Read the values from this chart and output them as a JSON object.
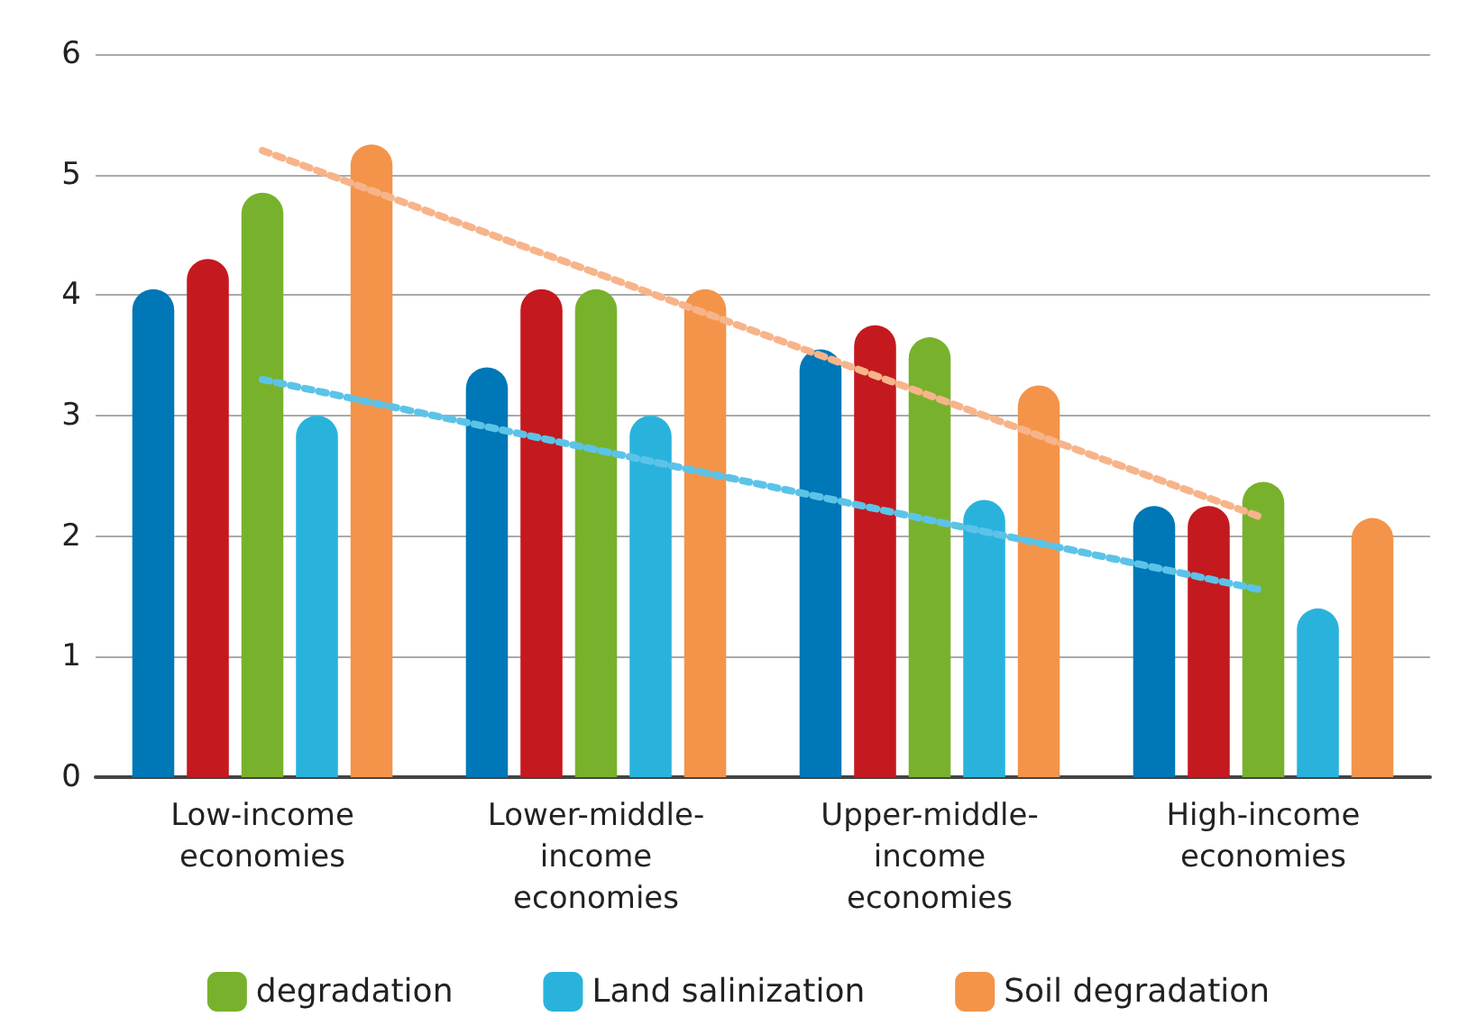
{
  "chart_data": {
    "type": "bar",
    "categories": [
      "Low-income economies",
      "Lower-middle-income economies",
      "Upper-middle-income economies",
      "High-income economies"
    ],
    "series": [
      {
        "color": "#0077b6",
        "values": [
          4.05,
          3.4,
          3.55,
          2.25
        ]
      },
      {
        "color": "#c4191f",
        "values": [
          4.3,
          4.05,
          3.75,
          2.25
        ]
      },
      {
        "name": "degradation",
        "color": "#78b22c",
        "values": [
          4.85,
          4.05,
          3.65,
          2.45
        ]
      },
      {
        "name": "Land salinization",
        "color": "#29b3dc",
        "values": [
          3.0,
          3.0,
          2.3,
          1.4
        ]
      },
      {
        "name": "Soil degradation",
        "color": "#f3944a",
        "values": [
          5.25,
          4.05,
          3.25,
          2.15
        ]
      },
      {
        "type": "line",
        "color": "#f7b48a",
        "x": [
          "Low-income economies",
          "High-income economies"
        ],
        "values": [
          5.2,
          2.15
        ]
      },
      {
        "type": "line",
        "color": "#5cc3e8",
        "x": [
          "Low-income economies",
          "High-income economies"
        ],
        "values": [
          3.3,
          1.55
        ]
      }
    ],
    "ylim": [
      0,
      6
    ],
    "yticks": [
      0,
      1,
      2,
      3,
      4,
      5,
      6
    ],
    "grid": "y",
    "legend": "bottom",
    "line_style": "dotted",
    "marker": "none"
  }
}
